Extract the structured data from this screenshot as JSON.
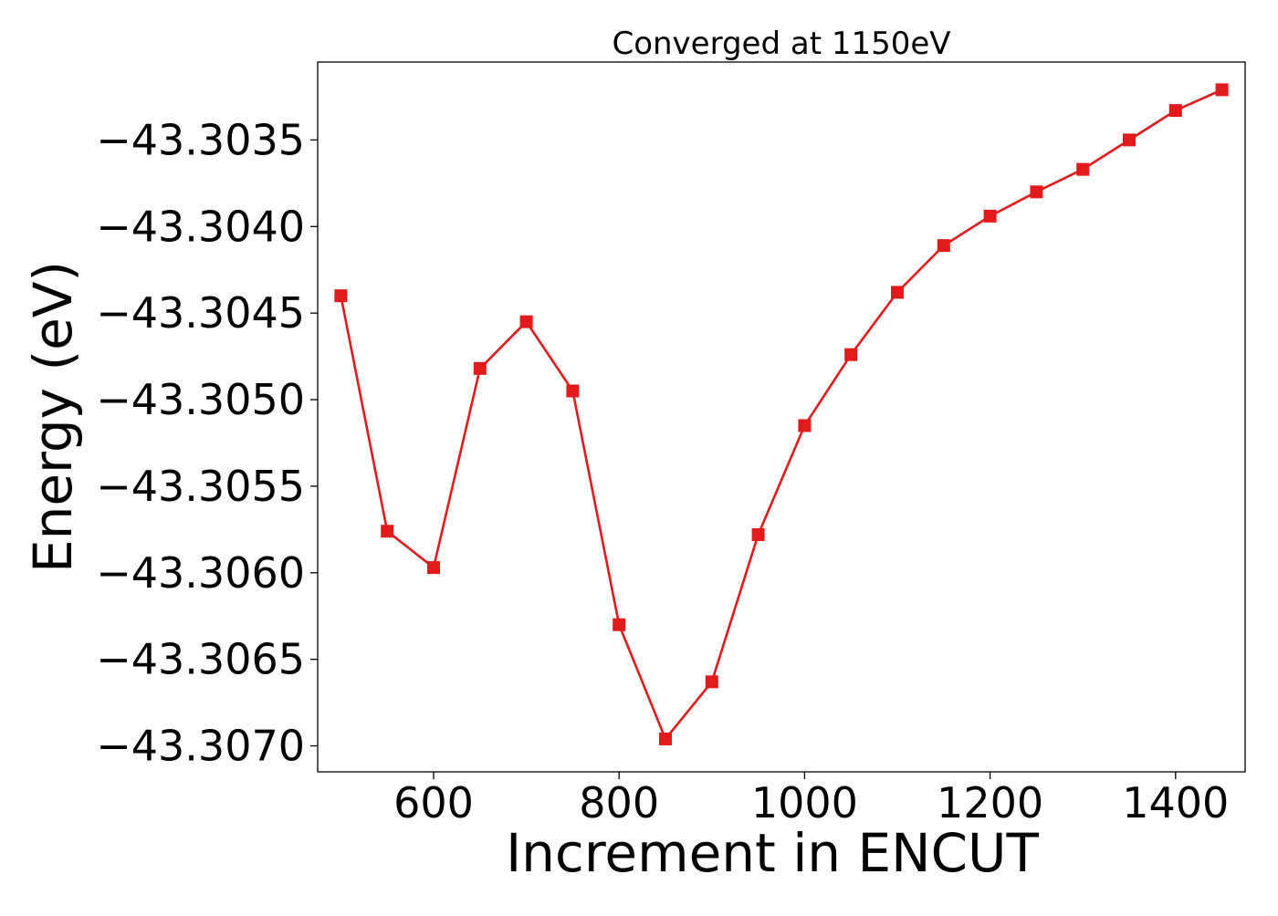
{
  "chart_data": {
    "type": "line",
    "title": "Converged at 1150eV",
    "xlabel": "Increment in ENCUT",
    "ylabel": "Energy (eV)",
    "xlim": [
      475,
      1475
    ],
    "ylim": [
      -43.30715,
      -43.30305
    ],
    "xticks": [
      600,
      800,
      1000,
      1200,
      1400
    ],
    "xtick_labels": [
      "600",
      "800",
      "1000",
      "1200",
      "1400"
    ],
    "yticks": [
      -43.3035,
      -43.304,
      -43.3045,
      -43.305,
      -43.3055,
      -43.306,
      -43.3065,
      -43.307
    ],
    "ytick_labels": [
      "−43.3035",
      "−43.3040",
      "−43.3045",
      "−43.3050",
      "−43.3055",
      "−43.3060",
      "−43.3065",
      "−43.3070"
    ],
    "grid": false,
    "legend": null,
    "series": [
      {
        "color": "#e31a1c",
        "marker": "square",
        "x": [
          500,
          550,
          600,
          650,
          700,
          750,
          800,
          850,
          900,
          950,
          1000,
          1050,
          1100,
          1150,
          1200,
          1250,
          1300,
          1350,
          1400,
          1450
        ],
        "y": [
          -43.3044,
          -43.30576,
          -43.30597,
          -43.30482,
          -43.30455,
          -43.30495,
          -43.3063,
          -43.30696,
          -43.30663,
          -43.30578,
          -43.30515,
          -43.30474,
          -43.30438,
          -43.30411,
          -43.30394,
          -43.3038,
          -43.30367,
          -43.3035,
          -43.30333,
          -43.30321
        ]
      }
    ]
  }
}
